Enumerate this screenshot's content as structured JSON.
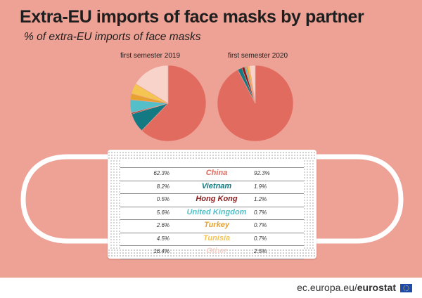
{
  "title": "Extra-EU imports of face masks by partner",
  "subtitle": "% of extra-EU imports of face masks",
  "chart_data": {
    "type": "pie",
    "title": "Extra-EU imports of face masks by partner",
    "subtitle": "% of extra-EU imports of face masks",
    "categories": [
      "China",
      "Vietnam",
      "Hong Kong",
      "United Kingdom",
      "Turkey",
      "Tunisia",
      "Other"
    ],
    "category_colors": [
      "#e26b5f",
      "#137a83",
      "#8b1a1a",
      "#54bfc9",
      "#e6a12e",
      "#f4c550",
      "#f7d3c9"
    ],
    "series": [
      {
        "name": "first semester 2019",
        "values": [
          62.3,
          8.2,
          0.5,
          5.6,
          2.6,
          4.5,
          16.4
        ],
        "labels": [
          "62.3%",
          "8.2%",
          "0.5%",
          "5.6%",
          "2.6%",
          "4.5%",
          "16.4%"
        ]
      },
      {
        "name": "first semester 2020",
        "values": [
          92.3,
          1.9,
          1.2,
          0.7,
          0.7,
          0.7,
          2.5
        ],
        "labels": [
          "92.3%",
          "1.9%",
          "1.2%",
          "0.7%",
          "0.7%",
          "0.7%",
          "2.5%"
        ]
      }
    ],
    "legend": "table"
  },
  "footer": {
    "domain": "ec.europa.eu/",
    "brand": "eurostat"
  },
  "icons": {
    "flag": "eu-flag-icon"
  }
}
